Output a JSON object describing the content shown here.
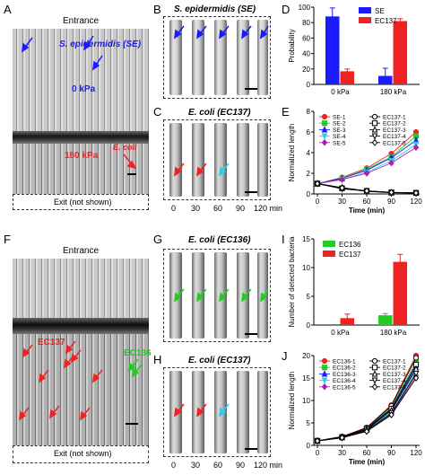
{
  "panels": {
    "A": {
      "letter": "A",
      "entrance": "Entrance",
      "species": "S. epidermidis (SE)",
      "pressure_low": "0 kPa",
      "pressure_high": "180 kPa",
      "ecoli": "E. coli",
      "exit": "Exit (not shown)"
    },
    "B": {
      "letter": "B",
      "title": "S. epidermidis (SE)"
    },
    "C": {
      "letter": "C",
      "title": "E. coli (EC137)",
      "times": [
        "0",
        "30",
        "60",
        "90",
        "120 min"
      ]
    },
    "D": {
      "letter": "D"
    },
    "E": {
      "letter": "E"
    },
    "F": {
      "letter": "F",
      "entrance": "Entrance",
      "ec137": "EC137",
      "ec136": "EC136",
      "exit": "Exit (not shown)"
    },
    "G": {
      "letter": "G",
      "title": "E. coli (EC136)"
    },
    "H": {
      "letter": "H",
      "title": "E. coli (EC137)",
      "times": [
        "0",
        "30",
        "60",
        "90",
        "120 min"
      ]
    },
    "I": {
      "letter": "I"
    },
    "J": {
      "letter": "J"
    }
  },
  "colors": {
    "se": "#1a1aff",
    "ec137": "#ee2222",
    "ec136": "#22cc22",
    "cyan": "#33ccee"
  },
  "chart_data": [
    {
      "id": "D",
      "type": "bar",
      "categories": [
        "0 kPa",
        "180 kPa"
      ],
      "series": [
        {
          "name": "SE",
          "values": [
            88,
            11
          ],
          "errors": [
            11,
            10
          ],
          "color": "#1a1aff"
        },
        {
          "name": "EC137",
          "values": [
            17,
            82
          ],
          "errors": [
            3,
            3
          ],
          "color": "#ee2222"
        }
      ],
      "ylabel": "Probability",
      "ylim": [
        0,
        100
      ],
      "yticks": [
        0,
        20,
        40,
        60,
        80,
        100
      ],
      "legend": "top-right"
    },
    {
      "id": "E",
      "type": "line",
      "x": [
        0,
        30,
        60,
        90,
        120
      ],
      "xticks": [
        "0",
        "30",
        "60",
        "90",
        "120"
      ],
      "xlabel": "Time (min)",
      "ylabel": "Normalized length",
      "ylim": [
        0,
        8
      ],
      "yticks": [
        0,
        2,
        4,
        6,
        8
      ],
      "series": [
        {
          "name": "SE-1",
          "values": [
            1.0,
            1.6,
            2.5,
            3.9,
            6.0
          ],
          "color": "#ee2222",
          "marker": "circle"
        },
        {
          "name": "SE-2",
          "values": [
            1.0,
            1.5,
            2.4,
            3.6,
            5.6
          ],
          "color": "#22cc22",
          "marker": "square"
        },
        {
          "name": "SE-3",
          "values": [
            1.0,
            1.5,
            2.3,
            3.5,
            5.2
          ],
          "color": "#1a1aff",
          "marker": "triangle"
        },
        {
          "name": "SE-4",
          "values": [
            1.0,
            1.4,
            2.1,
            3.2,
            4.8
          ],
          "color": "#33ccee",
          "marker": "triangle-down"
        },
        {
          "name": "SE-5",
          "values": [
            1.0,
            1.4,
            2.0,
            3.0,
            4.5
          ],
          "color": "#aa22aa",
          "marker": "diamond"
        },
        {
          "name": "EC137-1",
          "values": [
            1.0,
            0.6,
            0.3,
            0.15,
            0.1
          ],
          "color": "#000000",
          "marker": "circle"
        },
        {
          "name": "EC137-2",
          "values": [
            1.0,
            0.55,
            0.3,
            0.15,
            0.1
          ],
          "color": "#000000",
          "marker": "square"
        },
        {
          "name": "EC137-3",
          "values": [
            1.0,
            0.6,
            0.25,
            0.12,
            0.08
          ],
          "color": "#000000",
          "marker": "triangle"
        },
        {
          "name": "EC137-4",
          "values": [
            1.0,
            0.5,
            0.28,
            0.14,
            0.1
          ],
          "color": "#000000",
          "marker": "triangle-down"
        },
        {
          "name": "EC137-5",
          "values": [
            1.0,
            0.58,
            0.3,
            0.16,
            0.1
          ],
          "color": "#000000",
          "marker": "diamond"
        }
      ],
      "legend": "top-left"
    },
    {
      "id": "I",
      "type": "bar",
      "categories": [
        "0 kPa",
        "180 kPa"
      ],
      "series": [
        {
          "name": "EC136",
          "values": [
            0,
            1.7
          ],
          "errors": [
            0,
            0.3
          ],
          "color": "#22cc22"
        },
        {
          "name": "EC137",
          "values": [
            1.2,
            11
          ],
          "errors": [
            0.7,
            1.3
          ],
          "color": "#ee2222"
        }
      ],
      "ylabel": "Number of detected bacteria",
      "ylim": [
        0,
        15
      ],
      "yticks": [
        0,
        5,
        10,
        15
      ],
      "legend": "top-left"
    },
    {
      "id": "J",
      "type": "line",
      "x": [
        0,
        30,
        60,
        90,
        120
      ],
      "xticks": [
        "0",
        "30",
        "60",
        "90",
        "120"
      ],
      "xlabel": "Time (min)",
      "ylabel": "Normalized length",
      "ylim": [
        0,
        20
      ],
      "yticks": [
        0,
        5,
        10,
        15,
        20
      ],
      "series": [
        {
          "name": "EC136-1",
          "values": [
            1.0,
            2.0,
            4.0,
            9.0,
            20.0
          ],
          "color": "#ee2222",
          "marker": "circle"
        },
        {
          "name": "EC136-2",
          "values": [
            1.0,
            1.9,
            3.8,
            8.5,
            18.5
          ],
          "color": "#22cc22",
          "marker": "square"
        },
        {
          "name": "EC136-3",
          "values": [
            1.0,
            1.8,
            3.6,
            8.0,
            17.5
          ],
          "color": "#1a1aff",
          "marker": "triangle"
        },
        {
          "name": "EC136-4",
          "values": [
            1.0,
            1.8,
            3.4,
            7.5,
            16.5
          ],
          "color": "#33ccee",
          "marker": "triangle-down"
        },
        {
          "name": "EC136-5",
          "values": [
            1.0,
            1.7,
            3.2,
            7.0,
            15.5
          ],
          "color": "#aa22aa",
          "marker": "diamond"
        },
        {
          "name": "EC137-1",
          "values": [
            1.0,
            1.9,
            3.9,
            8.8,
            19.5
          ],
          "color": "#000000",
          "marker": "circle"
        },
        {
          "name": "EC137-2",
          "values": [
            1.0,
            1.8,
            3.7,
            8.2,
            18.0
          ],
          "color": "#000000",
          "marker": "square"
        },
        {
          "name": "EC137-3",
          "values": [
            1.0,
            1.8,
            3.5,
            7.8,
            17.0
          ],
          "color": "#000000",
          "marker": "triangle"
        },
        {
          "name": "EC137-4",
          "values": [
            1.0,
            1.7,
            3.3,
            7.2,
            16.0
          ],
          "color": "#000000",
          "marker": "triangle-down"
        },
        {
          "name": "EC137-5",
          "values": [
            1.0,
            1.7,
            3.1,
            6.8,
            15.0
          ],
          "color": "#000000",
          "marker": "diamond"
        }
      ],
      "legend": "top-left"
    }
  ]
}
